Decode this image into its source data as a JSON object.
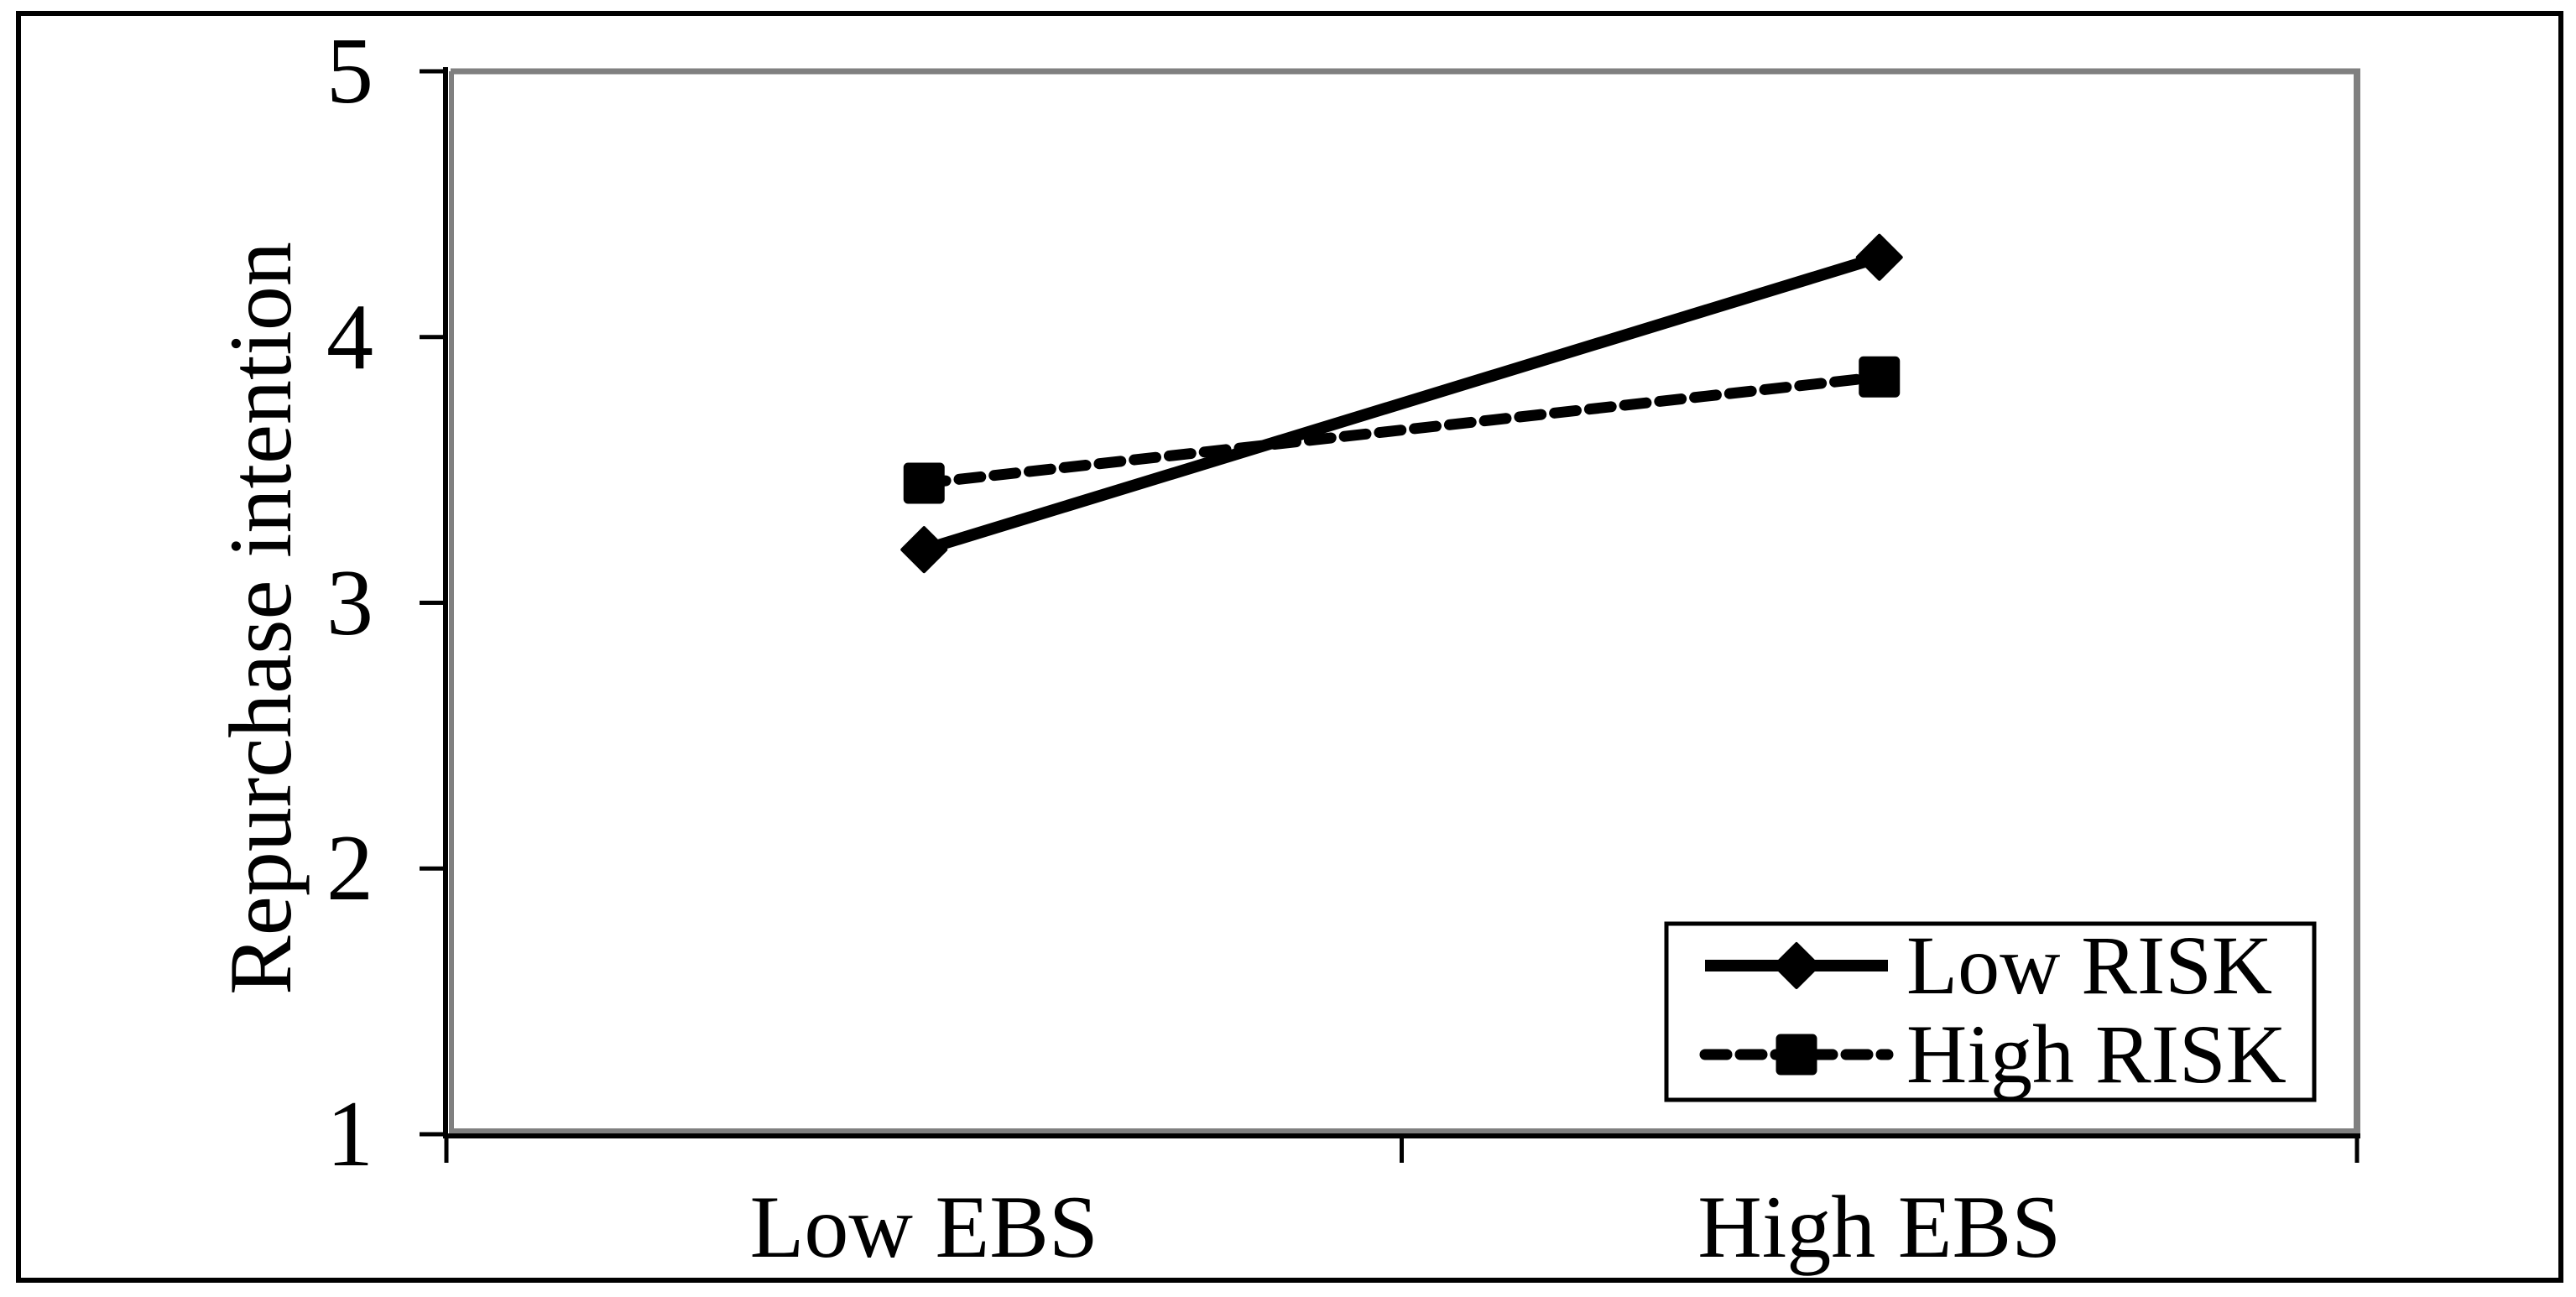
{
  "chart_data": {
    "type": "line",
    "title": "",
    "categories": [
      "Low EBS",
      "High EBS"
    ],
    "series": [
      {
        "name": "Low RISK",
        "values": [
          3.2,
          4.3
        ],
        "line_style": "solid",
        "marker": "diamond",
        "color": "#000000"
      },
      {
        "name": "High RISK",
        "values": [
          3.45,
          3.85
        ],
        "line_style": "dashed",
        "marker": "square",
        "color": "#000000"
      }
    ],
    "xlabel": "",
    "ylabel": "Repurchase intention",
    "ylim": [
      1,
      5
    ],
    "yticks": [
      5,
      4,
      3,
      2,
      1
    ],
    "ytick_labels": [
      "5",
      "4",
      "3",
      "2",
      "1"
    ],
    "grid": false,
    "legend": {
      "position": "inside-bottom-right",
      "items": [
        "Low RISK",
        "High RISK"
      ]
    },
    "colors": {
      "series": "#000000",
      "axis": "#000000",
      "plot_border": "#808080",
      "background": "#ffffff",
      "text": "#000000"
    }
  }
}
